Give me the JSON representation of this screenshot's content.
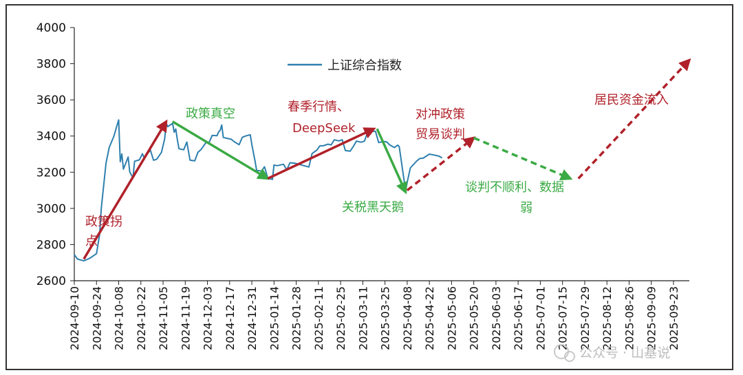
{
  "chart_data": {
    "type": "line",
    "ylim": [
      2600,
      4000
    ],
    "yticks": [
      2600,
      2800,
      3000,
      3200,
      3400,
      3600,
      3800,
      4000
    ],
    "x_start": "2024-09-10",
    "x_end": "2025-10-03",
    "xticks": [
      "2024-09-10",
      "2024-09-24",
      "2024-10-08",
      "2024-10-22",
      "2024-11-05",
      "2024-11-19",
      "2024-12-03",
      "2024-12-17",
      "2024-12-31",
      "2025-01-14",
      "2025-01-28",
      "2025-02-11",
      "2025-02-25",
      "2025-03-11",
      "2025-03-25",
      "2025-04-08",
      "2025-04-22",
      "2025-05-06",
      "2025-05-20",
      "2025-06-03",
      "2025-06-17",
      "2025-07-01",
      "2025-07-15",
      "2025-07-29",
      "2025-08-12",
      "2025-08-26",
      "2025-09-09",
      "2025-09-23"
    ],
    "series": [
      {
        "name": "上证综合指数",
        "color": "#2e7fae",
        "points": [
          [
            "2024-09-10",
            2745
          ],
          [
            "2024-09-12",
            2720
          ],
          [
            "2024-09-16",
            2710
          ],
          [
            "2024-09-20",
            2725
          ],
          [
            "2024-09-24",
            2750
          ],
          [
            "2024-09-26",
            2860
          ],
          [
            "2024-09-27",
            3000
          ],
          [
            "2024-09-30",
            3250
          ],
          [
            "2024-10-02",
            3336
          ],
          [
            "2024-10-05",
            3400
          ],
          [
            "2024-10-07",
            3460
          ],
          [
            "2024-10-08",
            3489
          ],
          [
            "2024-10-09",
            3258
          ],
          [
            "2024-10-10",
            3301
          ],
          [
            "2024-10-11",
            3217
          ],
          [
            "2024-10-14",
            3284
          ],
          [
            "2024-10-15",
            3201
          ],
          [
            "2024-10-17",
            3169
          ],
          [
            "2024-10-18",
            3261
          ],
          [
            "2024-10-21",
            3268
          ],
          [
            "2024-10-23",
            3302
          ],
          [
            "2024-10-24",
            3280
          ],
          [
            "2024-10-28",
            3322
          ],
          [
            "2024-10-30",
            3266
          ],
          [
            "2024-11-01",
            3272
          ],
          [
            "2024-11-04",
            3310
          ],
          [
            "2024-11-06",
            3383
          ],
          [
            "2024-11-07",
            3470
          ],
          [
            "2024-11-08",
            3452
          ],
          [
            "2024-11-11",
            3470
          ],
          [
            "2024-11-12",
            3421
          ],
          [
            "2024-11-13",
            3439
          ],
          [
            "2024-11-14",
            3380
          ],
          [
            "2024-11-15",
            3330
          ],
          [
            "2024-11-18",
            3324
          ],
          [
            "2024-11-20",
            3367
          ],
          [
            "2024-11-22",
            3267
          ],
          [
            "2024-11-25",
            3263
          ],
          [
            "2024-11-27",
            3310
          ],
          [
            "2024-11-29",
            3326
          ],
          [
            "2024-12-02",
            3363
          ],
          [
            "2024-12-04",
            3364
          ],
          [
            "2024-12-06",
            3404
          ],
          [
            "2024-12-09",
            3402
          ],
          [
            "2024-12-10",
            3422
          ],
          [
            "2024-12-11",
            3432
          ],
          [
            "2024-12-12",
            3461
          ],
          [
            "2024-12-13",
            3392
          ],
          [
            "2024-12-16",
            3386
          ],
          [
            "2024-12-18",
            3382
          ],
          [
            "2024-12-20",
            3368
          ],
          [
            "2024-12-23",
            3352
          ],
          [
            "2024-12-25",
            3393
          ],
          [
            "2024-12-27",
            3400
          ],
          [
            "2024-12-30",
            3407
          ],
          [
            "2024-12-31",
            3352
          ],
          [
            "2025-01-02",
            3262
          ],
          [
            "2025-01-03",
            3211
          ],
          [
            "2025-01-06",
            3206
          ],
          [
            "2025-01-08",
            3230
          ],
          [
            "2025-01-10",
            3168
          ],
          [
            "2025-01-13",
            3160
          ],
          [
            "2025-01-14",
            3240
          ],
          [
            "2025-01-16",
            3236
          ],
          [
            "2025-01-20",
            3244
          ],
          [
            "2025-01-22",
            3213
          ],
          [
            "2025-01-24",
            3252
          ],
          [
            "2025-01-27",
            3250
          ],
          [
            "2025-02-05",
            3229
          ],
          [
            "2025-02-07",
            3303
          ],
          [
            "2025-02-10",
            3322
          ],
          [
            "2025-02-12",
            3346
          ],
          [
            "2025-02-14",
            3346
          ],
          [
            "2025-02-17",
            3355
          ],
          [
            "2025-02-19",
            3351
          ],
          [
            "2025-02-21",
            3379
          ],
          [
            "2025-02-24",
            3373
          ],
          [
            "2025-02-26",
            3380
          ],
          [
            "2025-02-28",
            3320
          ],
          [
            "2025-03-03",
            3316
          ],
          [
            "2025-03-05",
            3342
          ],
          [
            "2025-03-07",
            3372
          ],
          [
            "2025-03-10",
            3366
          ],
          [
            "2025-03-12",
            3372
          ],
          [
            "2025-03-14",
            3419
          ],
          [
            "2025-03-17",
            3426
          ],
          [
            "2025-03-19",
            3426
          ],
          [
            "2025-03-21",
            3364
          ],
          [
            "2025-03-24",
            3370
          ],
          [
            "2025-03-26",
            3368
          ],
          [
            "2025-03-28",
            3351
          ],
          [
            "2025-03-31",
            3336
          ],
          [
            "2025-04-02",
            3350
          ],
          [
            "2025-04-03",
            3342
          ],
          [
            "2025-04-07",
            3096
          ],
          [
            "2025-04-08",
            3145
          ],
          [
            "2025-04-10",
            3224
          ],
          [
            "2025-04-14",
            3262
          ],
          [
            "2025-04-16",
            3276
          ],
          [
            "2025-04-18",
            3277
          ],
          [
            "2025-04-22",
            3300
          ],
          [
            "2025-04-25",
            3295
          ],
          [
            "2025-04-28",
            3289
          ],
          [
            "2025-04-30",
            3279
          ]
        ]
      }
    ],
    "arrows": [
      {
        "from": [
          "2024-09-16",
          2720
        ],
        "to": [
          "2024-11-07",
          3480
        ],
        "color": "#b0212a",
        "style": "solid"
      },
      {
        "from": [
          "2024-11-11",
          3480
        ],
        "to": [
          "2025-01-10",
          3165
        ],
        "color": "#3aaa44",
        "style": "solid"
      },
      {
        "from": [
          "2025-01-10",
          3165
        ],
        "to": [
          "2025-03-18",
          3440
        ],
        "color": "#b0212a",
        "style": "solid"
      },
      {
        "from": [
          "2025-03-20",
          3440
        ],
        "to": [
          "2025-04-07",
          3090
        ],
        "color": "#3aaa44",
        "style": "solid"
      },
      {
        "from": [
          "2025-04-08",
          3100
        ],
        "to": [
          "2025-05-20",
          3390
        ],
        "color": "#b0212a",
        "style": "dashed"
      },
      {
        "from": [
          "2025-05-20",
          3390
        ],
        "to": [
          "2025-07-20",
          3165
        ],
        "color": "#3aaa44",
        "style": "dashed"
      },
      {
        "from": [
          "2025-07-25",
          3165
        ],
        "to": [
          "2025-10-03",
          3820
        ],
        "color": "#b0212a",
        "style": "dashed"
      }
    ],
    "legend": {
      "label": "上证综合指数",
      "placement": "top-center"
    },
    "annotations": [
      {
        "id": "a1",
        "lines": [
          "政策拐",
          "点"
        ],
        "color": "#b0212a"
      },
      {
        "id": "a2",
        "lines": [
          "政策真空"
        ],
        "color": "#3aaa44"
      },
      {
        "id": "a3",
        "lines": [
          "春季行情、",
          "DeepSeek"
        ],
        "color": "#b0212a"
      },
      {
        "id": "a4",
        "lines": [
          "对冲政策",
          "贸易谈判"
        ],
        "color": "#b0212a"
      },
      {
        "id": "a5",
        "lines": [
          "关税黑天鹅"
        ],
        "color": "#3aaa44"
      },
      {
        "id": "a6",
        "lines": [
          "谈判不顺利、数据",
          "弱"
        ],
        "color": "#3aaa44"
      },
      {
        "id": "a7",
        "lines": [
          "居民资金流入"
        ],
        "color": "#b0212a"
      }
    ],
    "grid": false
  },
  "watermark": "公众号 · 山基说"
}
